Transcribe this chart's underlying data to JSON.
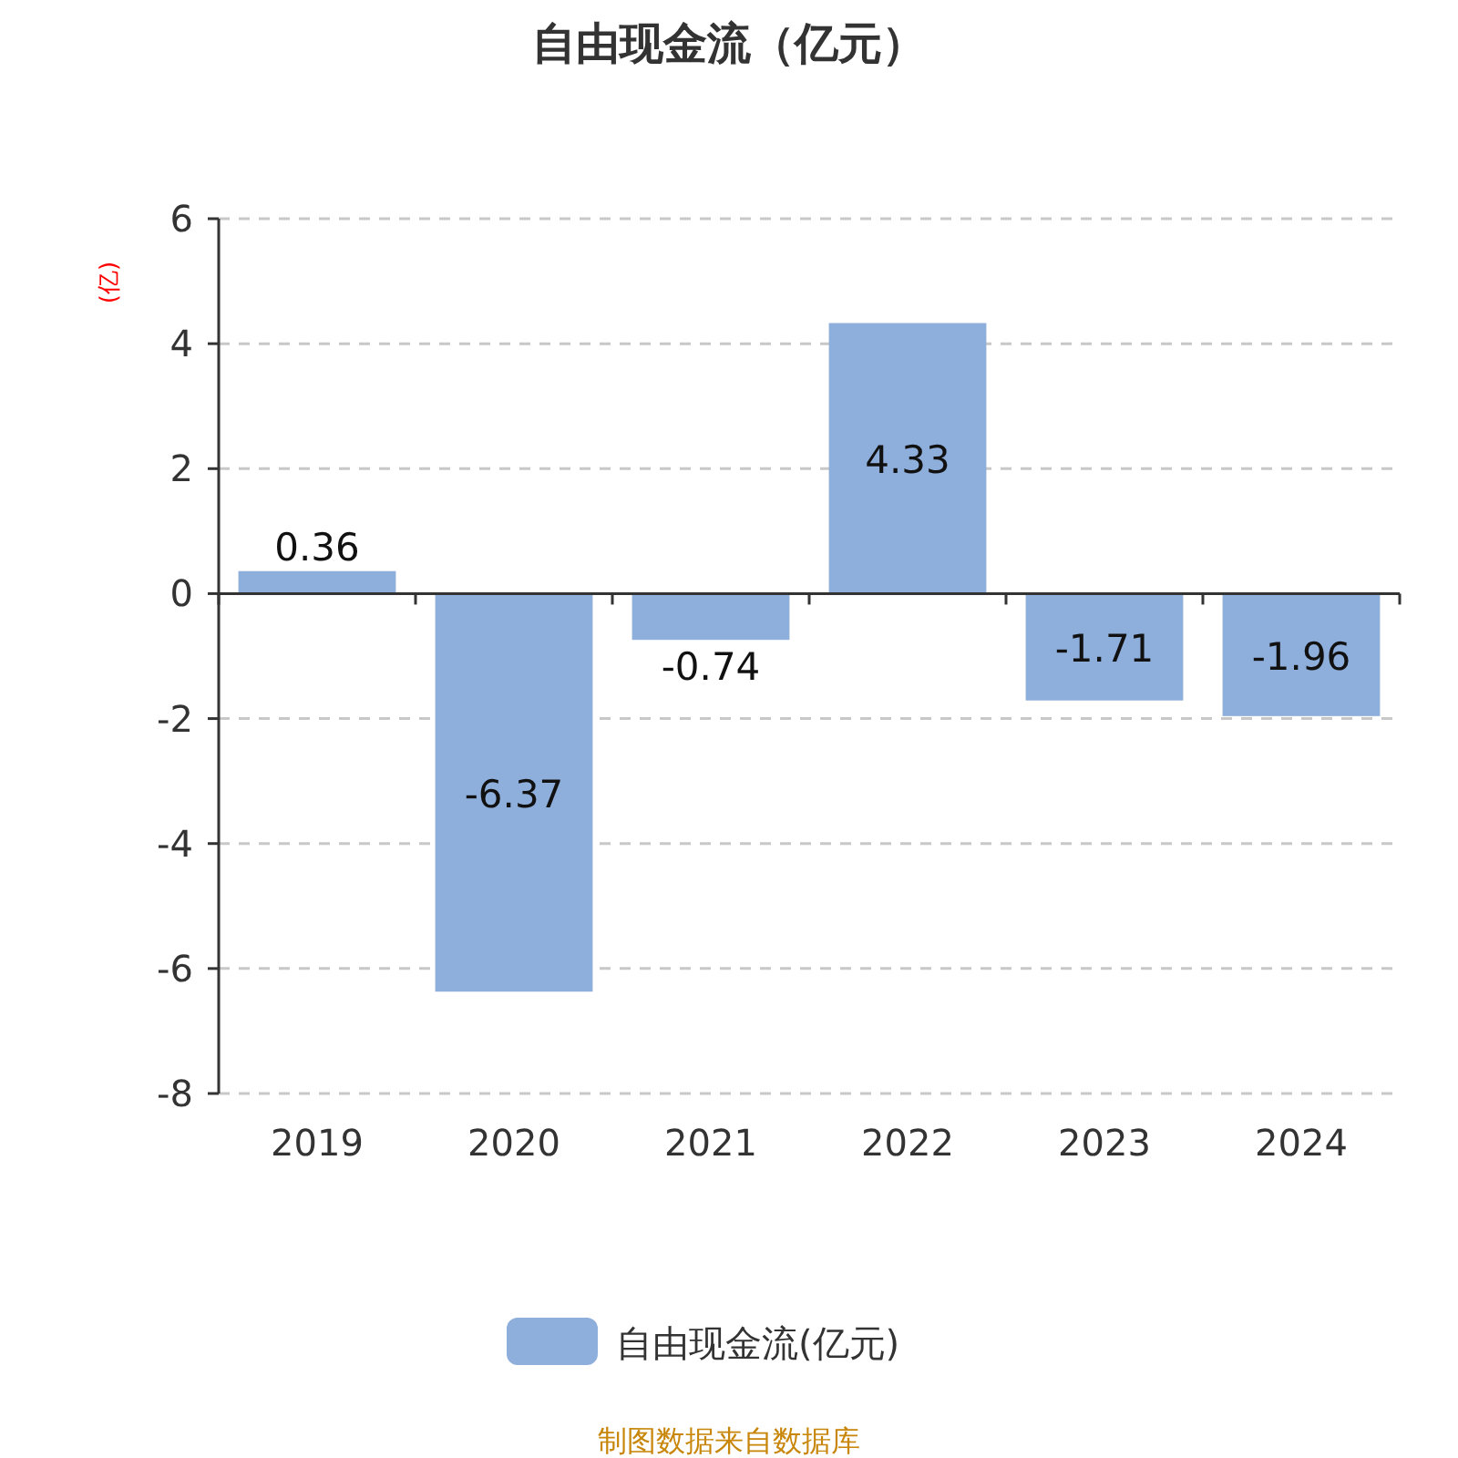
{
  "chart_data": {
    "type": "bar",
    "title": "自由现金流（亿元）",
    "ylabel": "(亿)",
    "categories": [
      "2019",
      "2020",
      "2021",
      "2022",
      "2023",
      "2024"
    ],
    "series": [
      {
        "name": "自由现金流(亿元)",
        "color": "#8eaedb",
        "values": [
          0.36,
          -6.37,
          -0.74,
          4.33,
          -1.71,
          -1.96
        ]
      }
    ],
    "ylim": [
      -8,
      6
    ],
    "yticks": [
      -8,
      -6,
      -4,
      -2,
      0,
      2,
      4,
      6
    ],
    "grid": "y",
    "legend": "bottom",
    "data_labels": true,
    "annotations": [
      "制图数据来自数据库"
    ]
  }
}
